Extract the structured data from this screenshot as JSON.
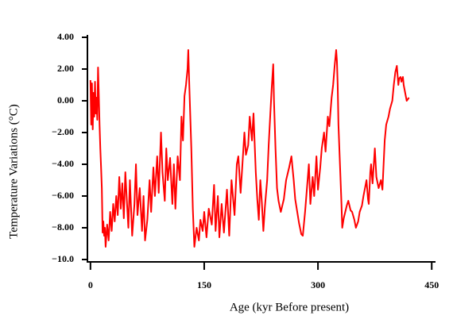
{
  "chart_data": {
    "type": "line",
    "x_label": "Age (kyr Before present)",
    "y_label": "Temperature Variations (°C)",
    "color": "#ff0000",
    "xlim": [
      -4,
      455
    ],
    "ylim": [
      -10.15,
      4.1
    ],
    "xticks": [
      0,
      150,
      300,
      450
    ],
    "yticks": [
      {
        "value": 4,
        "label": "4.00"
      },
      {
        "value": 2,
        "label": "2.00"
      },
      {
        "value": 0,
        "label": "0.00"
      },
      {
        "value": -2,
        "label": "−2.00"
      },
      {
        "value": -4,
        "label": "−4.00"
      },
      {
        "value": -6,
        "label": "−6.00"
      },
      {
        "value": -8,
        "label": "−8.00"
      },
      {
        "value": -10,
        "label": "−10.0"
      }
    ],
    "x": [
      0,
      1,
      2,
      3,
      4,
      5,
      6,
      7,
      8,
      9,
      10,
      11,
      12,
      13,
      14,
      15,
      16,
      17,
      18,
      19,
      20,
      22,
      24,
      26,
      28,
      30,
      32,
      34,
      36,
      38,
      40,
      42,
      44,
      46,
      48,
      50,
      52,
      55,
      58,
      60,
      62,
      65,
      68,
      70,
      72,
      75,
      78,
      80,
      83,
      85,
      88,
      90,
      93,
      95,
      98,
      100,
      102,
      105,
      108,
      110,
      112,
      115,
      118,
      120,
      122,
      124,
      126,
      128,
      129,
      130,
      131,
      133,
      135,
      137,
      140,
      143,
      145,
      148,
      150,
      153,
      156,
      160,
      163,
      165,
      168,
      170,
      173,
      176,
      180,
      183,
      186,
      190,
      193,
      195,
      198,
      200,
      203,
      205,
      208,
      210,
      213,
      215,
      218,
      220,
      222,
      224,
      226,
      228,
      230,
      233,
      235,
      237,
      239,
      241,
      242,
      244,
      246,
      248,
      251,
      255,
      258,
      262,
      265,
      268,
      270,
      273,
      275,
      278,
      280,
      283,
      285,
      288,
      290,
      293,
      295,
      298,
      300,
      303,
      305,
      308,
      310,
      313,
      315,
      318,
      320,
      322,
      324,
      325,
      326,
      327,
      329,
      331,
      332,
      334,
      336,
      338,
      340,
      343,
      345,
      348,
      350,
      353,
      355,
      358,
      360,
      362,
      364,
      366,
      367,
      369,
      370,
      372,
      375,
      377,
      380,
      383,
      385,
      388,
      390,
      393,
      395,
      398,
      400,
      402,
      404,
      405,
      406,
      407,
      409,
      410,
      412,
      413,
      415,
      417,
      420
    ],
    "values": [
      1.3,
      -1.5,
      1.1,
      -1.8,
      0.5,
      -1.0,
      1.2,
      -0.8,
      0.2,
      -1.2,
      2.1,
      0.4,
      -1.5,
      -3.0,
      -4.2,
      -5.5,
      -8.3,
      -7.6,
      -8.5,
      -8.0,
      -9.2,
      -7.8,
      -8.8,
      -7.0,
      -8.2,
      -6.5,
      -7.6,
      -6.0,
      -7.2,
      -4.8,
      -6.8,
      -5.2,
      -7.4,
      -4.5,
      -6.3,
      -8.0,
      -5.0,
      -8.5,
      -6.5,
      -4.0,
      -7.2,
      -5.5,
      -8.2,
      -6.0,
      -8.8,
      -7.5,
      -5.0,
      -7.0,
      -4.2,
      -6.0,
      -3.5,
      -5.8,
      -2.0,
      -4.5,
      -6.3,
      -3.0,
      -5.0,
      -3.6,
      -6.5,
      -4.0,
      -6.8,
      -3.5,
      -5.0,
      -1.0,
      -2.5,
      0.3,
      1.0,
      2.0,
      3.2,
      1.5,
      0.0,
      -3.0,
      -6.8,
      -9.2,
      -8.0,
      -8.8,
      -7.5,
      -8.2,
      -7.0,
      -8.6,
      -6.8,
      -7.8,
      -5.3,
      -8.2,
      -6.0,
      -8.6,
      -6.5,
      -8.3,
      -5.6,
      -8.5,
      -5.0,
      -7.2,
      -4.0,
      -3.5,
      -5.8,
      -4.3,
      -2.0,
      -3.4,
      -2.8,
      -1.0,
      -2.5,
      -0.8,
      -4.5,
      -6.2,
      -7.5,
      -5.0,
      -6.4,
      -8.2,
      -6.7,
      -5.0,
      -2.8,
      -1.0,
      0.8,
      2.3,
      0.0,
      -3.0,
      -5.5,
      -6.3,
      -7.0,
      -6.2,
      -5.0,
      -4.2,
      -3.5,
      -5.0,
      -6.2,
      -7.1,
      -7.7,
      -8.4,
      -8.5,
      -7.0,
      -5.8,
      -4.0,
      -6.5,
      -4.8,
      -6.0,
      -3.5,
      -5.6,
      -4.2,
      -3.0,
      -2.0,
      -3.2,
      -1.0,
      -1.6,
      0.2,
      1.0,
      2.2,
      3.2,
      2.5,
      1.0,
      -1.5,
      -4.0,
      -6.5,
      -8.0,
      -7.4,
      -7.0,
      -6.6,
      -6.3,
      -6.9,
      -7.0,
      -7.5,
      -8.0,
      -7.6,
      -7.0,
      -6.6,
      -6.0,
      -5.5,
      -5.0,
      -6.2,
      -6.5,
      -4.5,
      -4.0,
      -5.2,
      -3.0,
      -4.8,
      -5.5,
      -5.0,
      -5.6,
      -2.5,
      -1.5,
      -1.0,
      -0.5,
      0.0,
      1.0,
      1.8,
      2.2,
      1.6,
      1.0,
      1.4,
      1.5,
      1.2,
      1.5,
      1.0,
      0.5,
      0.0,
      0.2
    ]
  }
}
